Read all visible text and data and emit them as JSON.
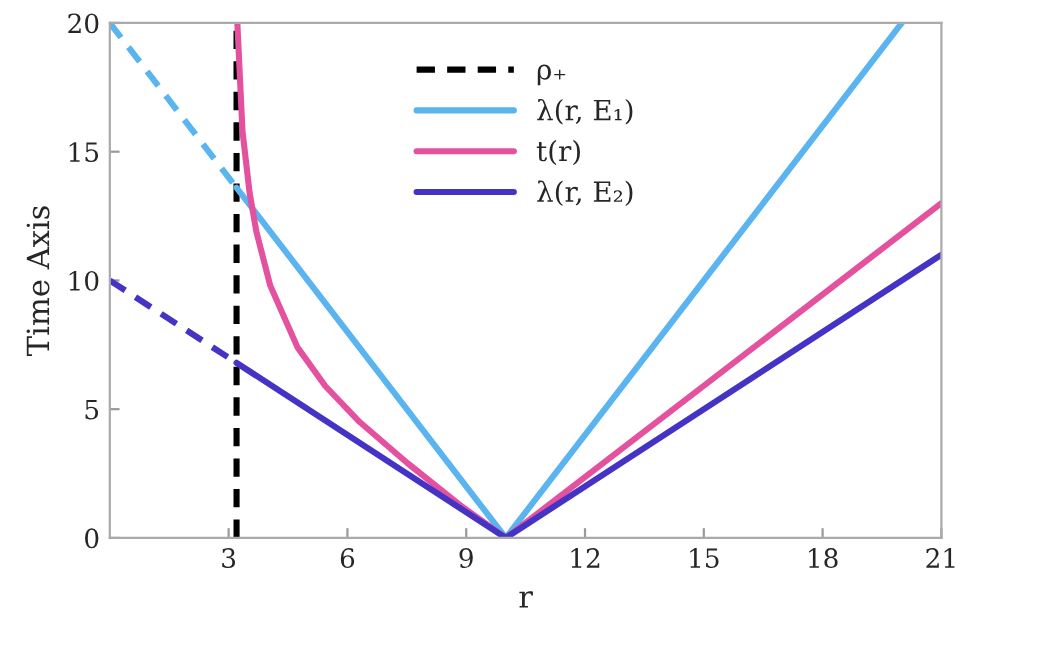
{
  "chart_data": {
    "type": "line",
    "xlabel": "r",
    "ylabel": "Time Axis",
    "xlim": [
      0,
      21
    ],
    "ylim": [
      0,
      20
    ],
    "xticks": [
      3,
      6,
      9,
      12,
      15,
      18,
      21
    ],
    "yticks": [
      0,
      5,
      10,
      15,
      20
    ],
    "grid": false,
    "legend": "top",
    "marker": "none",
    "series": [
      {
        "name": "ρ₊",
        "color": "#000000",
        "line_style": "dashed",
        "x": [
          3.2,
          3.2
        ],
        "values": [
          0,
          20
        ]
      },
      {
        "name": "λ(r, E₁)",
        "color": "#5ab4f0",
        "line_style": "solid",
        "x": [
          3.2,
          10,
          20
        ],
        "values": [
          13.6,
          0,
          20
        ]
      },
      {
        "name": "t(r)",
        "color": "#e4519f",
        "line_style": "solid",
        "x": [
          3.22,
          3.35,
          3.53,
          3.7,
          4.05,
          4.74,
          5.44,
          6.31,
          7.52,
          8.91,
          10,
          21
        ],
        "values": [
          20,
          15.8,
          13.4,
          11.9,
          9.8,
          7.4,
          5.9,
          4.5,
          2.9,
          1.2,
          0,
          13
        ]
      },
      {
        "name": "λ(r, E₂)",
        "color": "#4433c4",
        "line_style": "solid",
        "x": [
          3.2,
          10,
          21
        ],
        "values": [
          6.8,
          0,
          11
        ]
      },
      {
        "color": "#5ab4f0",
        "line_style": "dashed",
        "x": [
          0,
          3.2
        ],
        "values": [
          20,
          13.6
        ]
      },
      {
        "color": "#4433c4",
        "line_style": "dashed",
        "x": [
          0,
          3.2
        ],
        "values": [
          10,
          6.8
        ]
      }
    ]
  }
}
